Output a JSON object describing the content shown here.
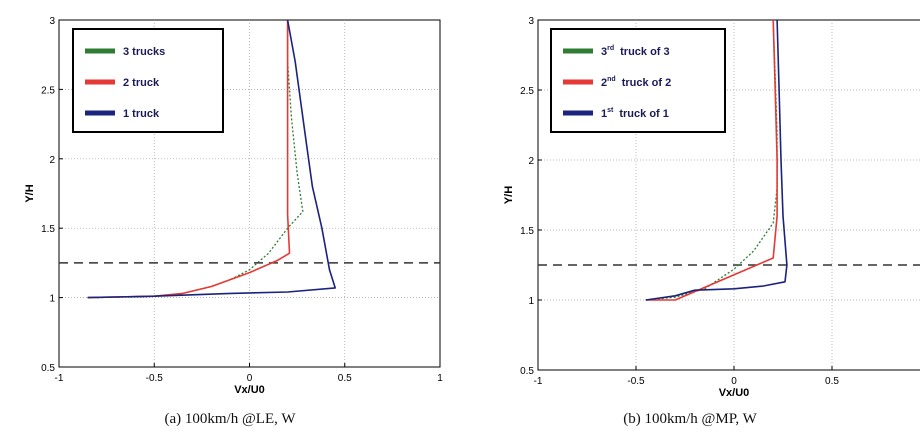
{
  "colors": {
    "green": "#2e7d32",
    "red": "#e53935",
    "blue": "#1a237e",
    "dash": "#333333",
    "grid": "#9e9e9e"
  },
  "chart_data": [
    {
      "type": "line",
      "caption": "(a) 100km/h @LE, W",
      "xlabel": "Vx/U0",
      "ylabel": "Y/H",
      "xlim": [
        -1,
        1
      ],
      "ylim": [
        0.5,
        3
      ],
      "xticks": [
        "-1",
        "-0.5",
        "0",
        "0.5",
        "1"
      ],
      "yticks": [
        "0.5",
        "1",
        "1.5",
        "2",
        "2.5",
        "3"
      ],
      "grid": true,
      "legend_position": "top-left",
      "reference_line": {
        "y": 1.25,
        "style": "dashed"
      },
      "series": [
        {
          "name": "3 trucks",
          "color": "green",
          "style": "dotted",
          "points": [
            [
              -0.8,
              1.0
            ],
            [
              -0.5,
              1.01
            ],
            [
              -0.35,
              1.03
            ],
            [
              -0.2,
              1.08
            ],
            [
              -0.1,
              1.13
            ],
            [
              0,
              1.2
            ],
            [
              0.1,
              1.32
            ],
            [
              0.2,
              1.5
            ],
            [
              0.28,
              1.62
            ],
            [
              0.25,
              1.9
            ],
            [
              0.22,
              2.3
            ],
            [
              0.2,
              2.7
            ],
            [
              0.2,
              3.0
            ]
          ]
        },
        {
          "name": "2 truck",
          "color": "red",
          "style": "solid",
          "points": [
            [
              -0.85,
              1.0
            ],
            [
              -0.5,
              1.01
            ],
            [
              -0.35,
              1.03
            ],
            [
              -0.2,
              1.08
            ],
            [
              0,
              1.18
            ],
            [
              0.15,
              1.27
            ],
            [
              0.21,
              1.32
            ],
            [
              0.2,
              1.6
            ],
            [
              0.2,
              2.0
            ],
            [
              0.2,
              2.5
            ],
            [
              0.2,
              3.0
            ]
          ]
        },
        {
          "name": "1 truck",
          "color": "blue",
          "style": "solid",
          "points": [
            [
              -0.85,
              1.0
            ],
            [
              -0.5,
              1.01
            ],
            [
              -0.3,
              1.02
            ],
            [
              -0.1,
              1.03
            ],
            [
              0.2,
              1.04
            ],
            [
              0.45,
              1.07
            ],
            [
              0.42,
              1.2
            ],
            [
              0.38,
              1.5
            ],
            [
              0.33,
              1.8
            ],
            [
              0.3,
              2.1
            ],
            [
              0.27,
              2.4
            ],
            [
              0.24,
              2.7
            ],
            [
              0.2,
              3.0
            ]
          ]
        }
      ]
    },
    {
      "type": "line",
      "caption": "(b) 100km/h @MP, W",
      "xlabel": "Vx/U0",
      "ylabel": "Y/H",
      "xlim": [
        -1,
        1
      ],
      "ylim": [
        0.5,
        3
      ],
      "xticks": [
        "-1",
        "-0.5",
        "0",
        "0.5"
      ],
      "yticks": [
        "0.5",
        "1",
        "1.5",
        "2",
        "2.5",
        "3"
      ],
      "grid": true,
      "legend_position": "top-left",
      "reference_line": {
        "y": 1.25,
        "style": "dashed"
      },
      "series": [
        {
          "name": "3rd truck of 3",
          "name_parts": [
            "3",
            "rd",
            "truck of 3"
          ],
          "color": "green",
          "style": "dotted",
          "points": [
            [
              -0.45,
              1.0
            ],
            [
              -0.3,
              1.02
            ],
            [
              -0.15,
              1.08
            ],
            [
              0,
              1.22
            ],
            [
              0.1,
              1.35
            ],
            [
              0.2,
              1.55
            ],
            [
              0.22,
              1.8
            ],
            [
              0.22,
              2.2
            ],
            [
              0.21,
              2.6
            ],
            [
              0.2,
              3.0
            ]
          ]
        },
        {
          "name": "2nd truck of 2",
          "name_parts": [
            "2",
            "nd",
            "truck of 2"
          ],
          "color": "red",
          "style": "solid",
          "points": [
            [
              -0.45,
              1.0
            ],
            [
              -0.3,
              1.0
            ],
            [
              -0.2,
              1.06
            ],
            [
              -0.05,
              1.15
            ],
            [
              0.1,
              1.24
            ],
            [
              0.2,
              1.3
            ],
            [
              0.22,
              1.6
            ],
            [
              0.22,
              2.0
            ],
            [
              0.21,
              2.5
            ],
            [
              0.2,
              3.0
            ]
          ]
        },
        {
          "name": "1st truck of 1",
          "name_parts": [
            "1",
            "st",
            "truck of 1"
          ],
          "color": "blue",
          "style": "solid",
          "points": [
            [
              -0.45,
              1.0
            ],
            [
              -0.3,
              1.03
            ],
            [
              -0.2,
              1.07
            ],
            [
              0,
              1.08
            ],
            [
              0.15,
              1.1
            ],
            [
              0.26,
              1.13
            ],
            [
              0.27,
              1.25
            ],
            [
              0.25,
              1.6
            ],
            [
              0.24,
              2.0
            ],
            [
              0.23,
              2.5
            ],
            [
              0.22,
              3.0
            ]
          ]
        }
      ]
    }
  ]
}
